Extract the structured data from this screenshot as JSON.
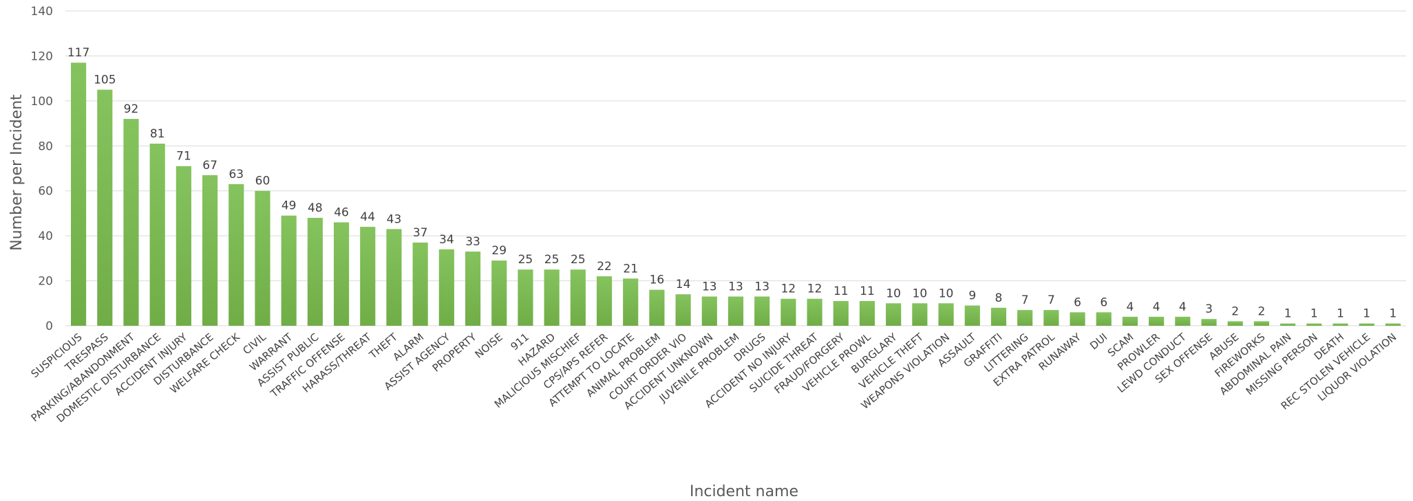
{
  "chart_data": {
    "type": "bar",
    "title": "",
    "xlabel": "Incident name",
    "ylabel": "Number per Incident",
    "ylim": [
      0,
      140
    ],
    "yticks": [
      0,
      20,
      40,
      60,
      80,
      100,
      120,
      140
    ],
    "grid": true,
    "legend": "none",
    "bar_color": "#70ad47",
    "categories": [
      "SUSPICIOUS",
      "TRESPASS",
      "PARKING/ABANDONMENT",
      "DOMESTIC DISTURBANCE",
      "ACCIDENT INJURY",
      "DISTURBANCE",
      "WELFARE CHECK",
      "CIVIL",
      "WARRANT",
      "ASSIST PUBLIC",
      "TRAFFIC OFFENSE",
      "HARASS/THREAT",
      "THEFT",
      "ALARM",
      "ASSIST AGENCY",
      "PROPERTY",
      "NOISE",
      "911",
      "HAZARD",
      "MALICIOUS MISCHIEF",
      "CPS/APS REFER",
      "ATTEMPT TO LOCATE",
      "ANIMAL PROBLEM",
      "COURT ORDER VIO",
      "ACCIDENT UNKNOWN",
      "JUVENILE PROBLEM",
      "DRUGS",
      "ACCIDENT NO INJURY",
      "SUICIDE THREAT",
      "FRAUD/FORGERY",
      "VEHICLE PROWL",
      "BURGLARY",
      "VEHICLE THEFT",
      "WEAPONS VIOLATION",
      "ASSAULT",
      "GRAFFITI",
      "LITTERING",
      "EXTRA PATROL",
      "RUNAWAY",
      "DUI",
      "SCAM",
      "PROWLER",
      "LEWD CONDUCT",
      "SEX OFFENSE",
      "ABUSE",
      "FIREWORKS",
      "ABDOMINAL PAIN",
      "MISSING PERSON",
      "DEATH",
      "REC STOLEN VEHICLE",
      "LIQUOR VIOLATION"
    ],
    "values": [
      117,
      105,
      92,
      81,
      71,
      67,
      63,
      60,
      49,
      48,
      46,
      44,
      43,
      37,
      34,
      33,
      29,
      25,
      25,
      25,
      22,
      21,
      16,
      14,
      13,
      13,
      13,
      12,
      12,
      11,
      11,
      10,
      10,
      10,
      9,
      8,
      7,
      7,
      6,
      6,
      4,
      4,
      4,
      3,
      2,
      2,
      1,
      1,
      1,
      1,
      1
    ]
  }
}
